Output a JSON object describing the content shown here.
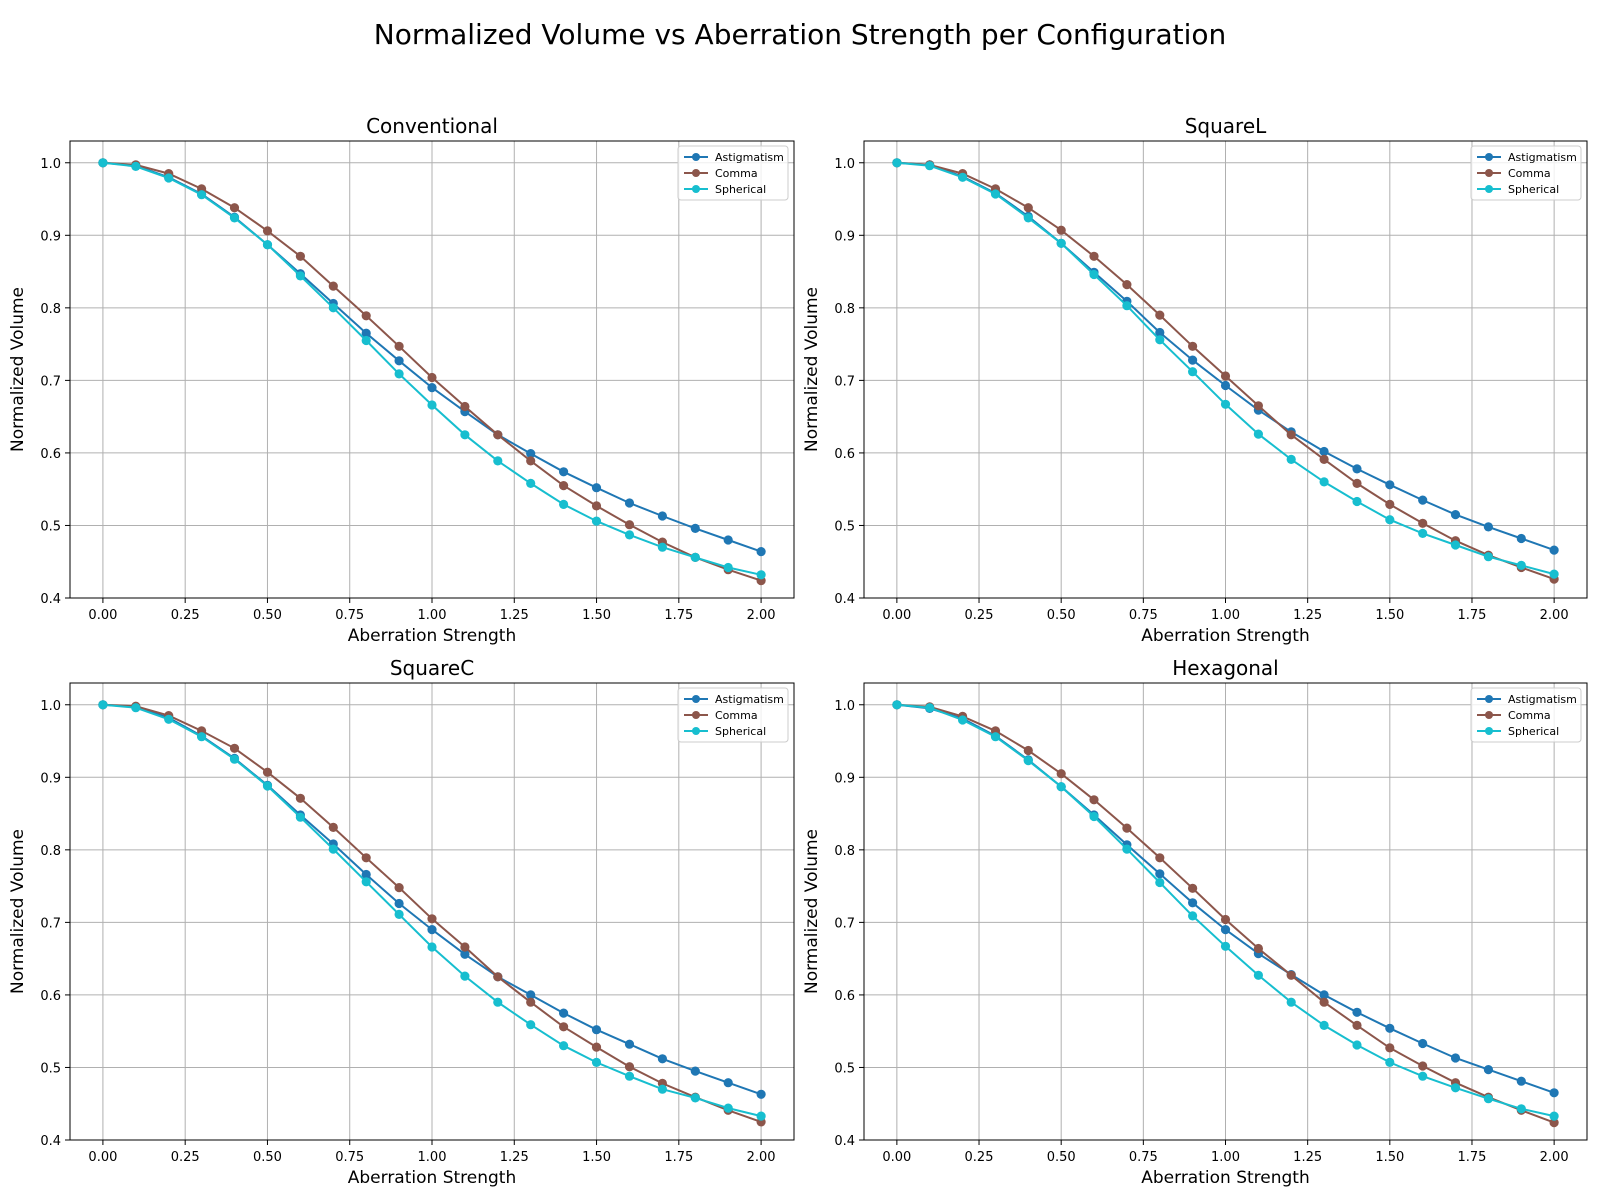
{
  "figure_title": "Normalized Volume vs Aberration Strength per Configuration",
  "chart_data": [
    {
      "type": "line",
      "title": "Conventional",
      "xlabel": "Aberration Strength",
      "ylabel": "Normalized Volume",
      "xlim": [
        -0.1,
        2.1
      ],
      "ylim": [
        0.4,
        1.03
      ],
      "xticks": [
        "0.00",
        "0.25",
        "0.50",
        "0.75",
        "1.00",
        "1.25",
        "1.50",
        "1.75",
        "2.00"
      ],
      "yticks": [
        "0.4",
        "0.5",
        "0.6",
        "0.7",
        "0.8",
        "0.9",
        "1.0"
      ],
      "grid": true,
      "legend": "top-right",
      "x": [
        0.0,
        0.1,
        0.2,
        0.3,
        0.4,
        0.5,
        0.6,
        0.7,
        0.8,
        0.9,
        1.0,
        1.1,
        1.2,
        1.3,
        1.4,
        1.5,
        1.6,
        1.7,
        1.8,
        1.9,
        2.0
      ],
      "series": [
        {
          "name": "Astigmatism",
          "color": "#1f77b4",
          "values": [
            1.0,
            0.996,
            0.98,
            0.957,
            0.925,
            0.887,
            0.847,
            0.806,
            0.765,
            0.727,
            0.69,
            0.657,
            0.625,
            0.599,
            0.574,
            0.552,
            0.531,
            0.513,
            0.496,
            0.48,
            0.464
          ]
        },
        {
          "name": "Comma",
          "color": "#8c564b",
          "values": [
            1.0,
            0.997,
            0.985,
            0.964,
            0.938,
            0.906,
            0.871,
            0.83,
            0.789,
            0.747,
            0.704,
            0.664,
            0.625,
            0.589,
            0.555,
            0.527,
            0.501,
            0.477,
            0.456,
            0.439,
            0.424
          ]
        },
        {
          "name": "Spherical",
          "color": "#17becf",
          "values": [
            1.0,
            0.995,
            0.979,
            0.956,
            0.924,
            0.887,
            0.844,
            0.8,
            0.755,
            0.709,
            0.666,
            0.625,
            0.589,
            0.558,
            0.529,
            0.506,
            0.487,
            0.47,
            0.456,
            0.442,
            0.432
          ]
        }
      ]
    },
    {
      "type": "line",
      "title": "SquareL",
      "xlabel": "Aberration Strength",
      "ylabel": "Normalized Volume",
      "xlim": [
        -0.1,
        2.1
      ],
      "ylim": [
        0.4,
        1.03
      ],
      "xticks": [
        "0.00",
        "0.25",
        "0.50",
        "0.75",
        "1.00",
        "1.25",
        "1.50",
        "1.75",
        "2.00"
      ],
      "yticks": [
        "0.4",
        "0.5",
        "0.6",
        "0.7",
        "0.8",
        "0.9",
        "1.0"
      ],
      "grid": true,
      "legend": "top-right",
      "x": [
        0.0,
        0.1,
        0.2,
        0.3,
        0.4,
        0.5,
        0.6,
        0.7,
        0.8,
        0.9,
        1.0,
        1.1,
        1.2,
        1.3,
        1.4,
        1.5,
        1.6,
        1.7,
        1.8,
        1.9,
        2.0
      ],
      "series": [
        {
          "name": "Astigmatism",
          "color": "#1f77b4",
          "values": [
            1.0,
            0.997,
            0.981,
            0.958,
            0.926,
            0.889,
            0.849,
            0.809,
            0.766,
            0.728,
            0.693,
            0.659,
            0.629,
            0.602,
            0.578,
            0.556,
            0.535,
            0.515,
            0.498,
            0.482,
            0.466
          ]
        },
        {
          "name": "Comma",
          "color": "#8c564b",
          "values": [
            1.0,
            0.997,
            0.985,
            0.964,
            0.938,
            0.907,
            0.871,
            0.832,
            0.79,
            0.747,
            0.706,
            0.665,
            0.625,
            0.591,
            0.558,
            0.529,
            0.503,
            0.479,
            0.459,
            0.442,
            0.426
          ]
        },
        {
          "name": "Spherical",
          "color": "#17becf",
          "values": [
            1.0,
            0.996,
            0.98,
            0.957,
            0.924,
            0.889,
            0.846,
            0.803,
            0.756,
            0.712,
            0.667,
            0.626,
            0.591,
            0.56,
            0.533,
            0.508,
            0.489,
            0.473,
            0.457,
            0.445,
            0.433
          ]
        }
      ]
    },
    {
      "type": "line",
      "title": "SquareC",
      "xlabel": "Aberration Strength",
      "ylabel": "Normalized Volume",
      "xlim": [
        -0.1,
        2.1
      ],
      "ylim": [
        0.4,
        1.03
      ],
      "xticks": [
        "0.00",
        "0.25",
        "0.50",
        "0.75",
        "1.00",
        "1.25",
        "1.50",
        "1.75",
        "2.00"
      ],
      "yticks": [
        "0.4",
        "0.5",
        "0.6",
        "0.7",
        "0.8",
        "0.9",
        "1.0"
      ],
      "grid": true,
      "legend": "top-right",
      "x": [
        0.0,
        0.1,
        0.2,
        0.3,
        0.4,
        0.5,
        0.6,
        0.7,
        0.8,
        0.9,
        1.0,
        1.1,
        1.2,
        1.3,
        1.4,
        1.5,
        1.6,
        1.7,
        1.8,
        1.9,
        2.0
      ],
      "series": [
        {
          "name": "Astigmatism",
          "color": "#1f77b4",
          "values": [
            1.0,
            0.997,
            0.982,
            0.957,
            0.926,
            0.889,
            0.848,
            0.808,
            0.766,
            0.726,
            0.69,
            0.656,
            0.625,
            0.6,
            0.575,
            0.552,
            0.532,
            0.512,
            0.495,
            0.479,
            0.463
          ]
        },
        {
          "name": "Comma",
          "color": "#8c564b",
          "values": [
            1.0,
            0.998,
            0.985,
            0.964,
            0.94,
            0.907,
            0.871,
            0.831,
            0.789,
            0.748,
            0.705,
            0.666,
            0.625,
            0.59,
            0.556,
            0.528,
            0.501,
            0.478,
            0.459,
            0.441,
            0.425
          ]
        },
        {
          "name": "Spherical",
          "color": "#17becf",
          "values": [
            1.0,
            0.996,
            0.98,
            0.956,
            0.925,
            0.888,
            0.845,
            0.801,
            0.756,
            0.711,
            0.666,
            0.626,
            0.59,
            0.559,
            0.53,
            0.507,
            0.488,
            0.47,
            0.458,
            0.444,
            0.433
          ]
        }
      ]
    },
    {
      "type": "line",
      "title": "Hexagonal",
      "xlabel": "Aberration Strength",
      "ylabel": "Normalized Volume",
      "xlim": [
        -0.1,
        2.1
      ],
      "ylim": [
        0.4,
        1.03
      ],
      "xticks": [
        "0.00",
        "0.25",
        "0.50",
        "0.75",
        "1.00",
        "1.25",
        "1.50",
        "1.75",
        "2.00"
      ],
      "yticks": [
        "0.4",
        "0.5",
        "0.6",
        "0.7",
        "0.8",
        "0.9",
        "1.0"
      ],
      "grid": true,
      "legend": "top-right",
      "x": [
        0.0,
        0.1,
        0.2,
        0.3,
        0.4,
        0.5,
        0.6,
        0.7,
        0.8,
        0.9,
        1.0,
        1.1,
        1.2,
        1.3,
        1.4,
        1.5,
        1.6,
        1.7,
        1.8,
        1.9,
        2.0
      ],
      "series": [
        {
          "name": "Astigmatism",
          "color": "#1f77b4",
          "values": [
            1.0,
            0.995,
            0.981,
            0.957,
            0.924,
            0.887,
            0.848,
            0.807,
            0.767,
            0.727,
            0.69,
            0.657,
            0.628,
            0.6,
            0.576,
            0.554,
            0.533,
            0.513,
            0.497,
            0.481,
            0.465
          ]
        },
        {
          "name": "Comma",
          "color": "#8c564b",
          "values": [
            1.0,
            0.997,
            0.984,
            0.964,
            0.937,
            0.905,
            0.869,
            0.83,
            0.789,
            0.747,
            0.704,
            0.664,
            0.627,
            0.59,
            0.558,
            0.527,
            0.502,
            0.479,
            0.459,
            0.441,
            0.424
          ]
        },
        {
          "name": "Spherical",
          "color": "#17becf",
          "values": [
            1.0,
            0.996,
            0.979,
            0.956,
            0.923,
            0.887,
            0.846,
            0.801,
            0.755,
            0.709,
            0.667,
            0.627,
            0.59,
            0.558,
            0.531,
            0.507,
            0.488,
            0.472,
            0.457,
            0.443,
            0.433
          ]
        }
      ]
    }
  ]
}
